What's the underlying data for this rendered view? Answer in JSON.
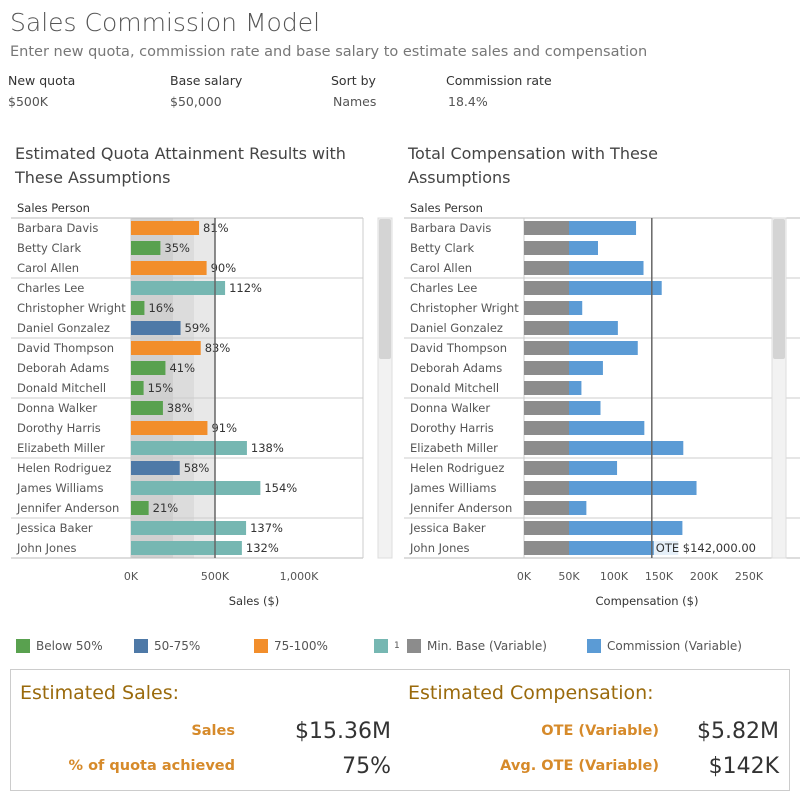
{
  "header": {
    "title": "Sales Commission Model",
    "subtitle": "Enter new quota, commission rate and base salary to estimate sales and compensation"
  },
  "params": [
    {
      "label": "New quota",
      "value": "$500K"
    },
    {
      "label": "Base salary",
      "value": "$50,000"
    },
    {
      "label": "Sort by",
      "value": "Names"
    },
    {
      "label": "Commission rate",
      "value": "18.4%"
    }
  ],
  "colors": {
    "below50": "#59a14f",
    "p50_75": "#4e79a7",
    "p75_100": "#f28e2b",
    "above100": "#76b7b2",
    "base": "#8c8c8c",
    "commission": "#5b9bd5",
    "bands": [
      "#d0d0d0",
      "#dcdcdc",
      "#e8e8e8"
    ]
  },
  "chart_data": [
    {
      "type": "bar",
      "title": "Estimated Quota Attainment Results with These Assumptions",
      "row_header": "Sales Person",
      "xlabel": "Sales ($)",
      "xticks": [
        "0K",
        "500K",
        "1,000K"
      ],
      "xlim": [
        0,
        1400000
      ],
      "quota_line": 500000,
      "categories": [
        "Barbara Davis",
        "Betty Clark",
        "Carol Allen",
        "Charles Lee",
        "Christopher Wright",
        "Daniel Gonzalez",
        "David Thompson",
        "Deborah Adams",
        "Donald Mitchell",
        "Donna Walker",
        "Dorothy Harris",
        "Elizabeth Miller",
        "Helen Rodriguez",
        "James Williams",
        "Jennifer Anderson",
        "Jessica Baker",
        "John Jones"
      ],
      "values": [
        405000,
        175000,
        450000,
        560000,
        80000,
        295000,
        415000,
        205000,
        75000,
        190000,
        455000,
        690000,
        290000,
        770000,
        105000,
        685000,
        660000
      ],
      "data_labels": [
        "81%",
        "35%",
        "90%",
        "112%",
        "16%",
        "59%",
        "83%",
        "41%",
        "15%",
        "38%",
        "91%",
        "138%",
        "58%",
        "154%",
        "21%",
        "137%",
        "132%"
      ],
      "attainment": [
        81,
        35,
        90,
        112,
        16,
        59,
        83,
        41,
        15,
        38,
        91,
        138,
        58,
        154,
        21,
        137,
        132
      ]
    },
    {
      "type": "bar",
      "title": "Total Compensation with These Assumptions",
      "row_header": "Sales Person",
      "xlabel": "Compensation ($)",
      "xticks": [
        "0K",
        "50K",
        "100K",
        "150K",
        "200K",
        "250K"
      ],
      "xlim": [
        0,
        270000
      ],
      "reference_line": 142000,
      "reference_label": "OTE $142,000.00",
      "stacked": true,
      "categories": [
        "Barbara Davis",
        "Betty Clark",
        "Carol Allen",
        "Charles Lee",
        "Christopher Wright",
        "Daniel Gonzalez",
        "David Thompson",
        "Deborah Adams",
        "Donald Mitchell",
        "Donna Walker",
        "Dorothy Harris",
        "Elizabeth Miller",
        "Helen Rodriguez",
        "James Williams",
        "Jennifer Anderson",
        "Jessica Baker",
        "John Jones"
      ],
      "series": [
        {
          "name": "Min. Base (Variable)",
          "values": [
            50000,
            50000,
            50000,
            50000,
            50000,
            50000,
            50000,
            50000,
            50000,
            50000,
            50000,
            50000,
            50000,
            50000,
            50000,
            50000,
            50000
          ]
        },
        {
          "name": "Commission (Variable)",
          "values": [
            74500,
            32200,
            82800,
            103000,
            14700,
            54300,
            76400,
            37700,
            13800,
            35000,
            83700,
            127000,
            53400,
            141700,
            19300,
            126000,
            121400
          ]
        }
      ]
    }
  ],
  "legend": [
    {
      "label": "Below 50%",
      "color": "#59a14f"
    },
    {
      "label": "50-75%",
      "color": "#4e79a7"
    },
    {
      "label": "75-100%",
      "color": "#f28e2b"
    },
    {
      "label": "1",
      "color": "#76b7b2"
    },
    {
      "label": "Min. Base (Variable)",
      "color": "#8c8c8c"
    },
    {
      "label": "Commission (Variable)",
      "color": "#5b9bd5"
    }
  ],
  "summary": {
    "sales_head": "Estimated Sales:",
    "comp_head": "Estimated Compensation:",
    "sales_label": "Sales",
    "sales_value": "$15.36M",
    "pct_label": "% of quota achieved",
    "pct_value": "75%",
    "ote_label": "OTE (Variable)",
    "ote_value": "$5.82M",
    "avg_label": "Avg. OTE (Variable)",
    "avg_value": "$142K"
  }
}
